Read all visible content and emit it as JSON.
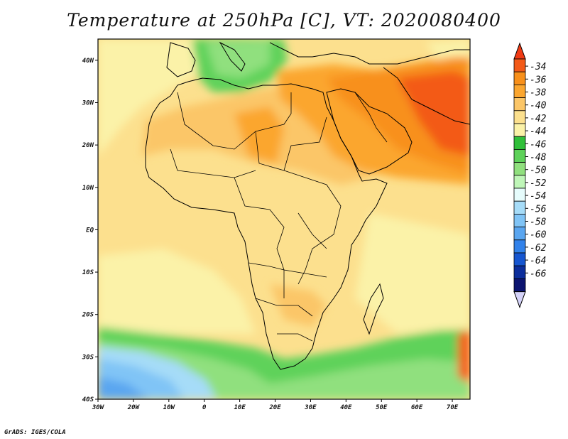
{
  "title": "Temperature at 250hPa [C], VT: 2020080400",
  "credit": "GrADS: IGES/COLA",
  "map": {
    "lon_range": [
      -30,
      75
    ],
    "lat_range": [
      -40,
      45
    ],
    "lon_ticks": [
      "30W",
      "20W",
      "10W",
      "0",
      "10E",
      "20E",
      "30E",
      "40E",
      "50E",
      "60E",
      "70E"
    ],
    "lat_ticks": [
      "40N",
      "30N",
      "20N",
      "10N",
      "EQ",
      "10S",
      "20S",
      "30S",
      "40S"
    ]
  },
  "colorbar": {
    "labels": [
      "-34",
      "-36",
      "-38",
      "-40",
      "-42",
      "-44",
      "-46",
      "-48",
      "-50",
      "-52",
      "-54",
      "-56",
      "-58",
      "-60",
      "-62",
      "-64",
      "-66"
    ],
    "colors": {
      "top_arrow": "#f03a14",
      "bins": [
        "#f35a18",
        "#f8901a",
        "#fba62f",
        "#fbc668",
        "#fce08e",
        "#fbf2a8",
        "#30c03a",
        "#5ed25a",
        "#90e07e",
        "#bff6b8",
        "#e6fcfc",
        "#a6dcf8",
        "#80c4f6",
        "#5aa6f0",
        "#3282ea",
        "#1656d0",
        "#0c2e9c",
        "#0c1470"
      ],
      "bottom_arrow": "#d4d2f8"
    }
  },
  "coastline_color": "#000000"
}
